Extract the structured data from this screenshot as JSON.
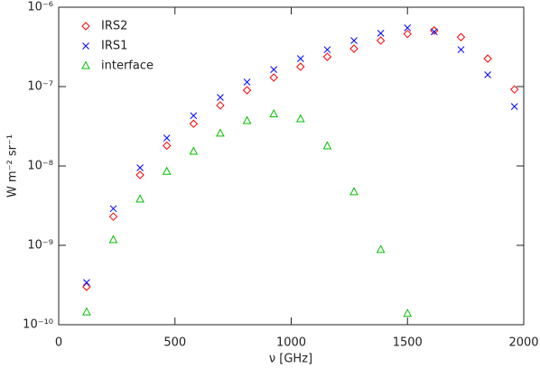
{
  "chart_data": {
    "type": "scatter",
    "x_label": "ν [GHz]",
    "y_label": "W m⁻² sr⁻¹",
    "x": [
      120,
      235,
      350,
      465,
      580,
      695,
      810,
      925,
      1040,
      1155,
      1270,
      1385,
      1500,
      1615,
      1730,
      1845,
      1960
    ],
    "series": [
      {
        "name": "IRS2",
        "color": "#ff0000",
        "marker": "diamond",
        "values": [
          3e-10,
          2.3e-09,
          7.7e-09,
          1.8e-08,
          3.4e-08,
          5.8e-08,
          9e-08,
          1.3e-07,
          1.78e-07,
          2.37e-07,
          3e-07,
          3.8e-07,
          4.6e-07,
          5.1e-07,
          4.2e-07,
          2.25e-07,
          9.2e-08
        ]
      },
      {
        "name": "IRS1",
        "color": "#0000ff",
        "marker": "cross",
        "values": [
          3.4e-10,
          2.9e-09,
          9.5e-09,
          2.25e-08,
          4.3e-08,
          7.3e-08,
          1.14e-07,
          1.64e-07,
          2.25e-07,
          2.92e-07,
          3.8e-07,
          4.7e-07,
          5.5e-07,
          4.9e-07,
          2.92e-07,
          1.41e-07,
          5.6e-08
        ]
      },
      {
        "name": "interface",
        "color": "#00c000",
        "marker": "triangle",
        "values": [
          1.44e-10,
          1.17e-09,
          3.8e-09,
          8.5e-09,
          1.52e-08,
          2.57e-08,
          3.7e-08,
          4.5e-08,
          3.9e-08,
          1.78e-08,
          4.7e-09,
          8.8e-10,
          1.38e-10,
          null,
          null,
          null,
          null
        ]
      }
    ],
    "xlim": [
      0,
      2000
    ],
    "xticks": [
      0,
      500,
      1000,
      1500,
      2000
    ],
    "ylim": [
      1e-10,
      1e-06
    ],
    "ylog": true,
    "yticks": [
      {
        "value": 1e-10,
        "label": "10⁻¹⁰"
      },
      {
        "value": 1e-09,
        "label": "10⁻⁹"
      },
      {
        "value": 1e-08,
        "label": "10⁻⁸"
      },
      {
        "value": 1e-07,
        "label": "10⁻⁷"
      },
      {
        "value": 1e-06,
        "label": "10⁻⁶"
      }
    ],
    "legend": "upper left"
  }
}
